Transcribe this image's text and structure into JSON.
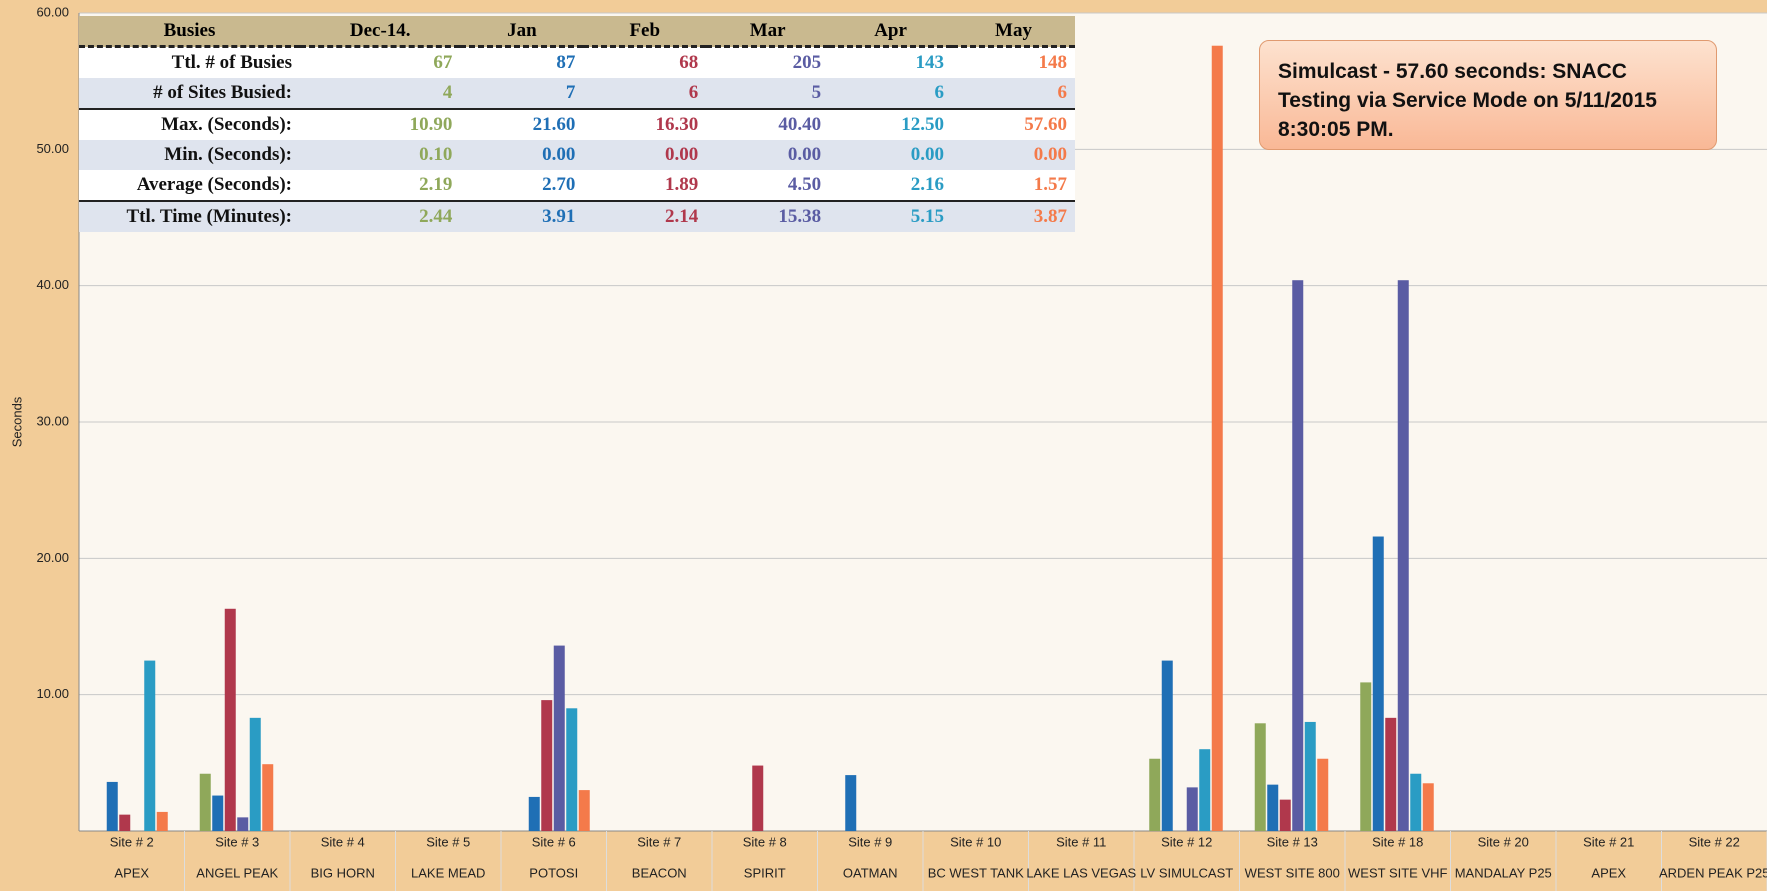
{
  "chart_data": {
    "type": "bar",
    "y_label": "Seconds",
    "categories": [
      "Site # 2",
      "Site # 3",
      "Site # 4",
      "Site # 5",
      "Site # 6",
      "Site # 7",
      "Site # 8",
      "Site # 9",
      "Site # 10",
      "Site # 11",
      "Site # 12",
      "Site # 13",
      "Site # 18",
      "Site # 20",
      "Site # 21",
      "Site # 22"
    ],
    "category_names": [
      "APEX",
      "ANGEL PEAK",
      "BIG HORN",
      "LAKE MEAD",
      "POTOSI",
      "BEACON",
      "SPIRIT",
      "OATMAN",
      "BC WEST TANK",
      "LAKE LAS VEGAS",
      "LV SIMULCAST",
      "WEST SITE 800",
      "WEST SITE VHF",
      "MANDALAY P25",
      "APEX",
      "ARDEN PEAK P25"
    ],
    "series": [
      {
        "name": "Dec-14.",
        "color": "#8fa85a",
        "values": [
          0,
          4.2,
          0,
          0,
          0,
          0,
          0,
          0,
          0,
          0,
          5.3,
          7.9,
          10.9,
          0,
          0,
          0
        ]
      },
      {
        "name": "Jan",
        "color": "#1f6fb5",
        "values": [
          3.6,
          2.6,
          0,
          0,
          2.5,
          0,
          0,
          4.1,
          0,
          0,
          12.5,
          3.4,
          21.6,
          0,
          0,
          0
        ]
      },
      {
        "name": "Feb",
        "color": "#b0384c",
        "values": [
          1.2,
          16.3,
          0,
          0,
          9.6,
          0,
          4.8,
          0,
          0,
          0,
          0,
          2.3,
          8.3,
          0,
          0,
          0
        ]
      },
      {
        "name": "Mar",
        "color": "#5a5ca3",
        "values": [
          0,
          1.0,
          0,
          0,
          13.6,
          0,
          0,
          0,
          0,
          0,
          3.2,
          40.4,
          40.4,
          0,
          0,
          0
        ]
      },
      {
        "name": "Apr",
        "color": "#2a9cc4",
        "values": [
          12.5,
          8.3,
          0,
          0,
          9.0,
          0,
          0,
          0,
          0,
          0,
          6.0,
          8.0,
          4.2,
          0,
          0,
          0
        ]
      },
      {
        "name": "May",
        "color": "#f47a4a",
        "values": [
          1.4,
          4.9,
          0,
          0,
          3.0,
          0,
          0,
          0,
          0,
          0,
          57.6,
          5.3,
          3.5,
          0,
          0,
          0
        ]
      }
    ],
    "ylim": [
      0,
      60
    ],
    "yticks": [
      {
        "value": 10,
        "label": "10.00"
      },
      {
        "value": 20,
        "label": "20.00"
      },
      {
        "value": 30,
        "label": "30.00"
      },
      {
        "value": 40,
        "label": "40.00"
      },
      {
        "value": 50,
        "label": "50.00"
      },
      {
        "value": 60,
        "label": "60.00"
      }
    ],
    "grid": true,
    "annotation": "Simulcast - 57.60 seconds: SNACC Testing via Service Mode on 5/11/2015 8:30:05 PM.",
    "table": {
      "header": [
        "Busies",
        "Dec-14.",
        "Jan",
        "Feb",
        "Mar",
        "Apr",
        "May"
      ],
      "rows": [
        [
          "Ttl. # of Busies",
          "67",
          "87",
          "68",
          "205",
          "143",
          "148"
        ],
        [
          "# of Sites Busied:",
          "4",
          "7",
          "6",
          "5",
          "6",
          "6"
        ],
        [
          "Max. (Seconds):",
          "10.90",
          "21.60",
          "16.30",
          "40.40",
          "12.50",
          "57.60"
        ],
        [
          "Min. (Seconds):",
          "0.10",
          "0.00",
          "0.00",
          "0.00",
          "0.00",
          "0.00"
        ],
        [
          "Average (Seconds):",
          "2.19",
          "2.70",
          "1.89",
          "4.50",
          "2.16",
          "1.57"
        ],
        [
          "Ttl. Time (Minutes):",
          "2.44",
          "3.91",
          "2.14",
          "15.38",
          "5.15",
          "3.87"
        ]
      ]
    }
  }
}
